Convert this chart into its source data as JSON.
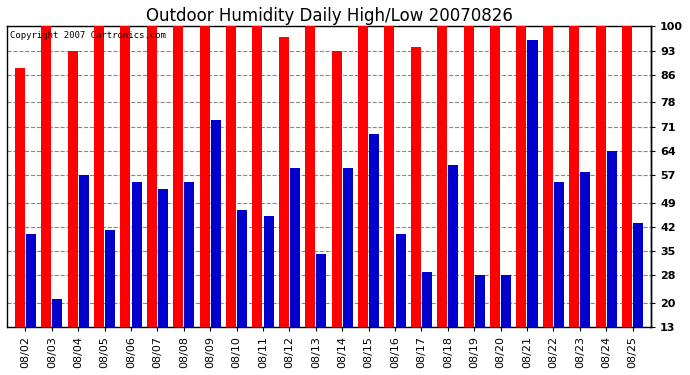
{
  "title": "Outdoor Humidity Daily High/Low 20070826",
  "copyright_text": "Copyright 2007 Cartronics.com",
  "dates": [
    "08/02",
    "08/03",
    "08/04",
    "08/05",
    "08/06",
    "08/07",
    "08/08",
    "08/09",
    "08/10",
    "08/11",
    "08/12",
    "08/13",
    "08/14",
    "08/15",
    "08/16",
    "08/17",
    "08/18",
    "08/19",
    "08/20",
    "08/21",
    "08/22",
    "08/23",
    "08/24",
    "08/25"
  ],
  "highs": [
    88,
    100,
    93,
    100,
    100,
    100,
    100,
    100,
    100,
    100,
    97,
    100,
    93,
    100,
    100,
    94,
    100,
    100,
    100,
    100,
    100,
    100,
    100,
    100
  ],
  "lows": [
    40,
    21,
    57,
    41,
    55,
    53,
    55,
    73,
    47,
    45,
    59,
    34,
    59,
    69,
    40,
    29,
    60,
    28,
    28,
    96,
    55,
    58,
    64,
    43
  ],
  "high_color": "#FF0000",
  "low_color": "#0000CC",
  "bg_color": "#FFFFFF",
  "plot_bg_color": "#FFFFFF",
  "grid_color": "#888888",
  "yticks": [
    13,
    20,
    28,
    35,
    42,
    49,
    57,
    64,
    71,
    78,
    86,
    93,
    100
  ],
  "ymin": 13,
  "ymax": 100,
  "title_fontsize": 12,
  "tick_fontsize": 8,
  "bar_width": 0.38,
  "bar_gap": 0.04
}
